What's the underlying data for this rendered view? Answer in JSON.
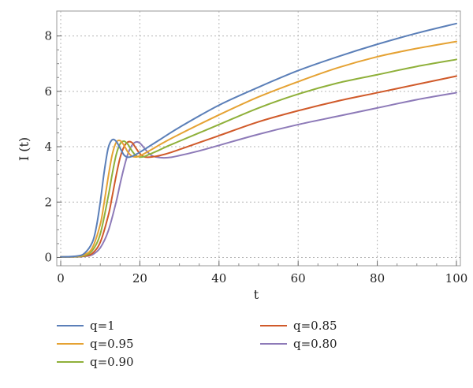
{
  "chart_data": {
    "type": "line",
    "title": "",
    "xlabel": "t",
    "ylabel": "I (t)",
    "xlim": [
      -1,
      101
    ],
    "ylim": [
      -0.3,
      8.9
    ],
    "xticks": [
      0,
      20,
      40,
      60,
      80,
      100
    ],
    "yticks": [
      0,
      2,
      4,
      6,
      8
    ],
    "grid": true,
    "legend_position": "bottom",
    "series": [
      {
        "name": "q=1",
        "color": "#5b7fb8",
        "x": [
          0,
          4,
          6,
          8,
          9,
          10,
          11,
          12,
          13,
          14,
          15,
          16,
          17,
          18,
          19,
          20,
          22,
          25,
          30,
          40,
          50,
          60,
          70,
          80,
          90,
          100
        ],
        "y": [
          0.02,
          0.05,
          0.15,
          0.55,
          1.1,
          2.0,
          3.1,
          3.95,
          4.25,
          4.2,
          3.95,
          3.7,
          3.62,
          3.65,
          3.72,
          3.8,
          3.98,
          4.25,
          4.7,
          5.5,
          6.15,
          6.75,
          7.25,
          7.7,
          8.1,
          8.45
        ]
      },
      {
        "name": "q=0.95",
        "color": "#e5a233",
        "x": [
          0,
          4,
          6,
          8,
          10,
          11,
          12,
          13,
          14,
          15,
          16,
          17,
          18,
          19,
          20,
          21,
          23,
          26,
          30,
          40,
          50,
          60,
          70,
          80,
          90,
          100
        ],
        "y": [
          0.02,
          0.04,
          0.1,
          0.35,
          1.2,
          2.0,
          2.9,
          3.7,
          4.15,
          4.22,
          4.05,
          3.8,
          3.66,
          3.63,
          3.67,
          3.74,
          3.9,
          4.15,
          4.45,
          5.15,
          5.8,
          6.35,
          6.85,
          7.25,
          7.55,
          7.8
        ]
      },
      {
        "name": "q=0.90",
        "color": "#8fb03a",
        "x": [
          0,
          4,
          6,
          8,
          10,
          12,
          13,
          14,
          15,
          16,
          17,
          18,
          19,
          20,
          21,
          22,
          24,
          27,
          30,
          40,
          50,
          60,
          70,
          80,
          90,
          100
        ],
        "y": [
          0.02,
          0.03,
          0.07,
          0.25,
          0.85,
          2.2,
          3.0,
          3.7,
          4.1,
          4.2,
          4.08,
          3.85,
          3.68,
          3.63,
          3.64,
          3.7,
          3.82,
          4.02,
          4.2,
          4.8,
          5.4,
          5.9,
          6.3,
          6.6,
          6.9,
          7.15
        ]
      },
      {
        "name": "q=0.85",
        "color": "#d05a2a",
        "x": [
          0,
          4,
          6,
          8,
          10,
          12,
          13,
          14,
          15,
          16,
          17,
          18,
          19,
          20,
          21,
          22,
          23,
          25,
          28,
          32,
          40,
          50,
          60,
          70,
          80,
          90,
          100
        ],
        "y": [
          0.02,
          0.03,
          0.05,
          0.15,
          0.55,
          1.5,
          2.2,
          2.95,
          3.6,
          4.0,
          4.17,
          4.15,
          3.95,
          3.75,
          3.64,
          3.62,
          3.63,
          3.68,
          3.8,
          4.0,
          4.4,
          4.9,
          5.3,
          5.65,
          5.95,
          6.25,
          6.55
        ]
      },
      {
        "name": "q=0.80",
        "color": "#8d7ab8",
        "x": [
          0,
          4,
          6,
          8,
          10,
          12,
          14,
          15,
          16,
          17,
          18,
          19,
          20,
          21,
          22,
          23,
          24,
          26,
          28,
          30,
          35,
          40,
          50,
          60,
          70,
          80,
          90,
          100
        ],
        "y": [
          0.02,
          0.02,
          0.04,
          0.1,
          0.35,
          0.95,
          2.0,
          2.65,
          3.25,
          3.75,
          4.05,
          4.17,
          4.13,
          3.97,
          3.8,
          3.68,
          3.63,
          3.6,
          3.62,
          3.68,
          3.85,
          4.05,
          4.45,
          4.8,
          5.1,
          5.4,
          5.7,
          5.95
        ]
      }
    ]
  }
}
